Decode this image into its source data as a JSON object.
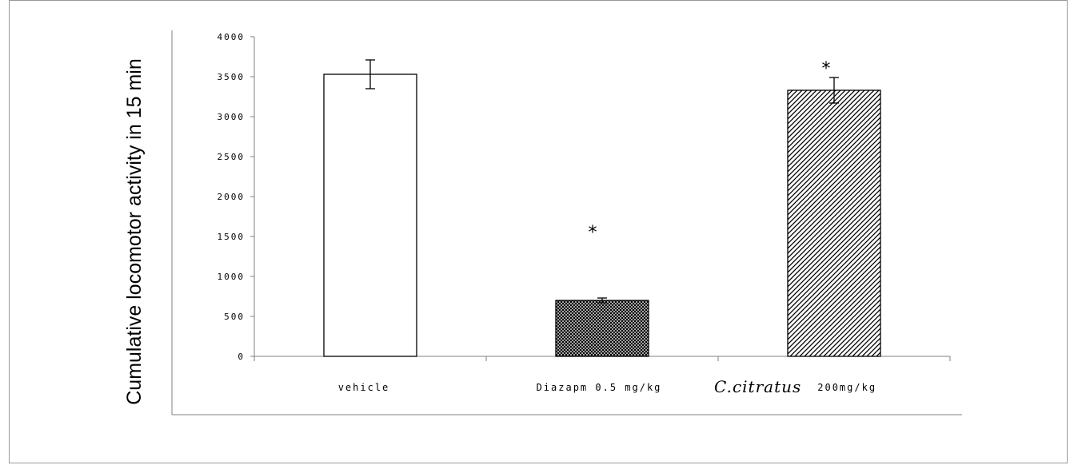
{
  "chart_data": {
    "type": "bar",
    "title": "",
    "xlabel": "",
    "ylabel": "Cumulative locomotor activity in 15 min",
    "ylim": [
      0,
      4000
    ],
    "yticks": [
      0,
      500,
      1000,
      1500,
      2000,
      2500,
      3000,
      3500,
      4000
    ],
    "ytick_labels": [
      "0",
      "500",
      "1000",
      "1500",
      "2000",
      "2500",
      "3000",
      "3500",
      "4000"
    ],
    "categories": [
      "vehicle",
      "Diazapm 0.5 mg/kg",
      "C.citratus 200mg/kg"
    ],
    "category_label_parts": [
      [
        {
          "text": "vehicle",
          "style": "normal"
        }
      ],
      [
        {
          "text": "Diazapm 0.5 mg/kg",
          "style": "normal"
        }
      ],
      [
        {
          "text": "C.citratus",
          "style": "italic"
        },
        {
          "text": "200mg/kg",
          "style": "normal"
        }
      ]
    ],
    "values": [
      3530,
      700,
      3330
    ],
    "errors": [
      180,
      30,
      160
    ],
    "fills": [
      "none",
      "dense-cross-hatch",
      "diagonal-hatch"
    ],
    "annotations": [
      "",
      "*",
      "*"
    ],
    "grid": false,
    "legend": "none"
  },
  "colors": {
    "bar_stroke": "#000000",
    "axis": "#808080",
    "frame": "#999999",
    "text": "#000000"
  }
}
